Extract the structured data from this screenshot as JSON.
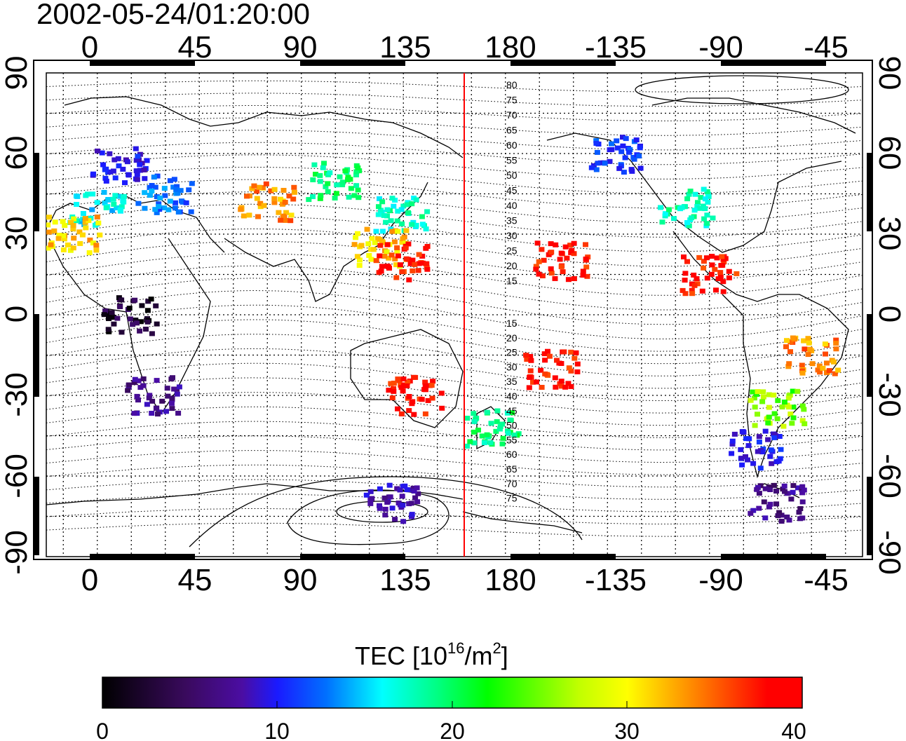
{
  "title": "2002-05-24/01:20:00",
  "map": {
    "top_lon_labels": [
      "0",
      "45",
      "90",
      "135",
      "180",
      "-135",
      "-90",
      "-45"
    ],
    "bottom_lon_labels": [
      "0",
      "45",
      "90",
      "135",
      "180",
      "-135",
      "-90",
      "-45"
    ],
    "left_lat_labels": [
      "90",
      "60",
      "30",
      "0",
      "-30",
      "-60",
      "-90"
    ],
    "right_lat_labels": [
      "90",
      "60",
      "30",
      "0",
      "-30",
      "-60",
      "-90"
    ],
    "contour_labels_north": [
      "80",
      "75",
      "70",
      "65",
      "60",
      "55",
      "50",
      "45",
      "40",
      "35",
      "30",
      "25",
      "20",
      "15"
    ],
    "contour_labels_south": [
      "15",
      "20",
      "25",
      "30",
      "35",
      "40",
      "45",
      "50",
      "55",
      "60",
      "65",
      "70",
      "75"
    ],
    "meridian_marker_color": "#ff0000"
  },
  "colorbar": {
    "label": "TEC  [10",
    "label_exp": "16",
    "label_unit": "/m",
    "label_unit_exp": "2",
    "label_close": "]",
    "ticks": [
      "0",
      "10",
      "20",
      "30",
      "40"
    ],
    "min": 0,
    "max": 40,
    "colors": [
      "#000000",
      "#3a0a5e",
      "#4b0da3",
      "#1a1aff",
      "#0070ff",
      "#00ffff",
      "#00ff80",
      "#00ff00",
      "#c0ff00",
      "#ffff00",
      "#ff8000",
      "#ff0000"
    ]
  },
  "chart_data": {
    "type": "heatmap",
    "title": "2002-05-24/01:20:00",
    "xlabel": "",
    "ylabel": "",
    "colorbar_label": "TEC [10^16/m^2]",
    "xlim": [
      -22.5,
      337.5
    ],
    "ylim": [
      -90,
      90
    ],
    "value_range": [
      0,
      40
    ],
    "regions": [
      {
        "lon": 10,
        "lat": 55,
        "value": 10
      },
      {
        "lon": 30,
        "lat": 45,
        "value": 14
      },
      {
        "lon": 0,
        "lat": 40,
        "value": 18
      },
      {
        "lon": -10,
        "lat": 30,
        "value": 34
      },
      {
        "lon": 75,
        "lat": 42,
        "value": 36
      },
      {
        "lon": 105,
        "lat": 50,
        "value": 22
      },
      {
        "lon": 135,
        "lat": 38,
        "value": 20
      },
      {
        "lon": 125,
        "lat": 25,
        "value": 34
      },
      {
        "lon": 135,
        "lat": 20,
        "value": 40
      },
      {
        "lon": 15,
        "lat": 0,
        "value": 2
      },
      {
        "lon": 25,
        "lat": -30,
        "value": 6
      },
      {
        "lon": 140,
        "lat": -30,
        "value": 40
      },
      {
        "lon": 175,
        "lat": -42,
        "value": 22
      },
      {
        "lon": 200,
        "lat": -20,
        "value": 40
      },
      {
        "lon": 205,
        "lat": 20,
        "value": 40
      },
      {
        "lon": -100,
        "lat": 40,
        "value": 20
      },
      {
        "lon": -130,
        "lat": 60,
        "value": 12
      },
      {
        "lon": -90,
        "lat": 15,
        "value": 40
      },
      {
        "lon": -45,
        "lat": -15,
        "value": 36
      },
      {
        "lon": -60,
        "lat": -35,
        "value": 28
      },
      {
        "lon": -70,
        "lat": -50,
        "value": 10
      },
      {
        "lon": 130,
        "lat": -70,
        "value": 8
      },
      {
        "lon": -60,
        "lat": -70,
        "value": 6
      }
    ]
  }
}
